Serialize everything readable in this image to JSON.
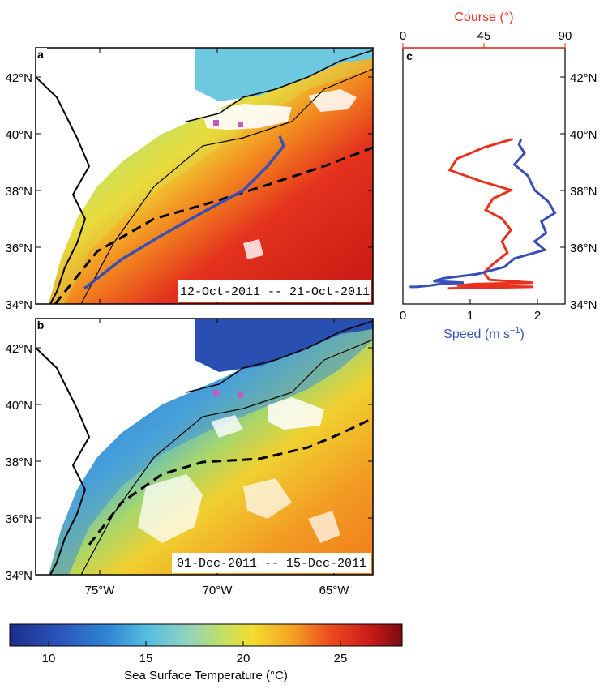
{
  "panel_a": {
    "letter": "a",
    "date_range": "12-Oct-2011 -- 21-Oct-2011",
    "lat_ticks": [
      "42°N",
      "40°N",
      "38°N",
      "36°N",
      "34°N"
    ]
  },
  "panel_b": {
    "letter": "b",
    "date_range": "01-Dec-2011 -- 15-Dec-2011",
    "lat_ticks": [
      "42°N",
      "40°N",
      "38°N",
      "36°N",
      "34°N"
    ],
    "lon_ticks": [
      "75°W",
      "70°W",
      "65°W"
    ]
  },
  "panel_c": {
    "letter": "c",
    "course_label": "Course (°)",
    "course_ticks": [
      "0",
      "45",
      "90"
    ],
    "speed_label": "Speed (m s",
    "speed_label_sup": "−1",
    "speed_label_end": ")",
    "speed_ticks": [
      "0",
      "1",
      "2"
    ],
    "lat_ticks": [
      "42°N",
      "40°N",
      "38°N",
      "36°N",
      "34°N"
    ],
    "course_color": "#e8321e",
    "speed_color": "#3a4fb5"
  },
  "colorbar": {
    "title": "Sea Surface Temperature (°C)",
    "ticks": [
      "10",
      "15",
      "20",
      "25"
    ],
    "min": 8,
    "max": 28
  },
  "chart_data": {
    "type": "line",
    "ylim": [
      34,
      43
    ],
    "xlim_speed": [
      0,
      2.4
    ],
    "xlim_course": [
      0,
      90
    ],
    "series": [
      {
        "name": "Speed",
        "lat": [
          39.8,
          39.6,
          39.3,
          38.9,
          38.5,
          38.0,
          37.6,
          37.2,
          36.9,
          36.5,
          36.2,
          35.9,
          35.6,
          35.3,
          35.05,
          34.9,
          34.8,
          34.75,
          34.7,
          34.65,
          34.6,
          34.6
        ],
        "values": [
          1.75,
          1.72,
          1.8,
          1.65,
          1.85,
          1.95,
          2.15,
          2.25,
          2.05,
          2.12,
          1.95,
          2.1,
          1.65,
          1.5,
          1.1,
          0.6,
          0.45,
          0.9,
          0.55,
          0.4,
          0.2,
          0.1
        ]
      },
      {
        "name": "Course",
        "lat": [
          39.8,
          39.5,
          39.1,
          38.7,
          38.3,
          38.0,
          37.7,
          37.3,
          37.0,
          36.6,
          36.2,
          35.8,
          35.4,
          35.1,
          34.85,
          34.75,
          34.7,
          34.65,
          34.6,
          34.55
        ],
        "values": [
          61,
          45,
          30,
          26,
          44,
          60,
          50,
          46,
          55,
          60,
          55,
          58,
          50,
          45,
          48,
          72,
          40,
          30,
          72,
          25
        ]
      }
    ]
  }
}
